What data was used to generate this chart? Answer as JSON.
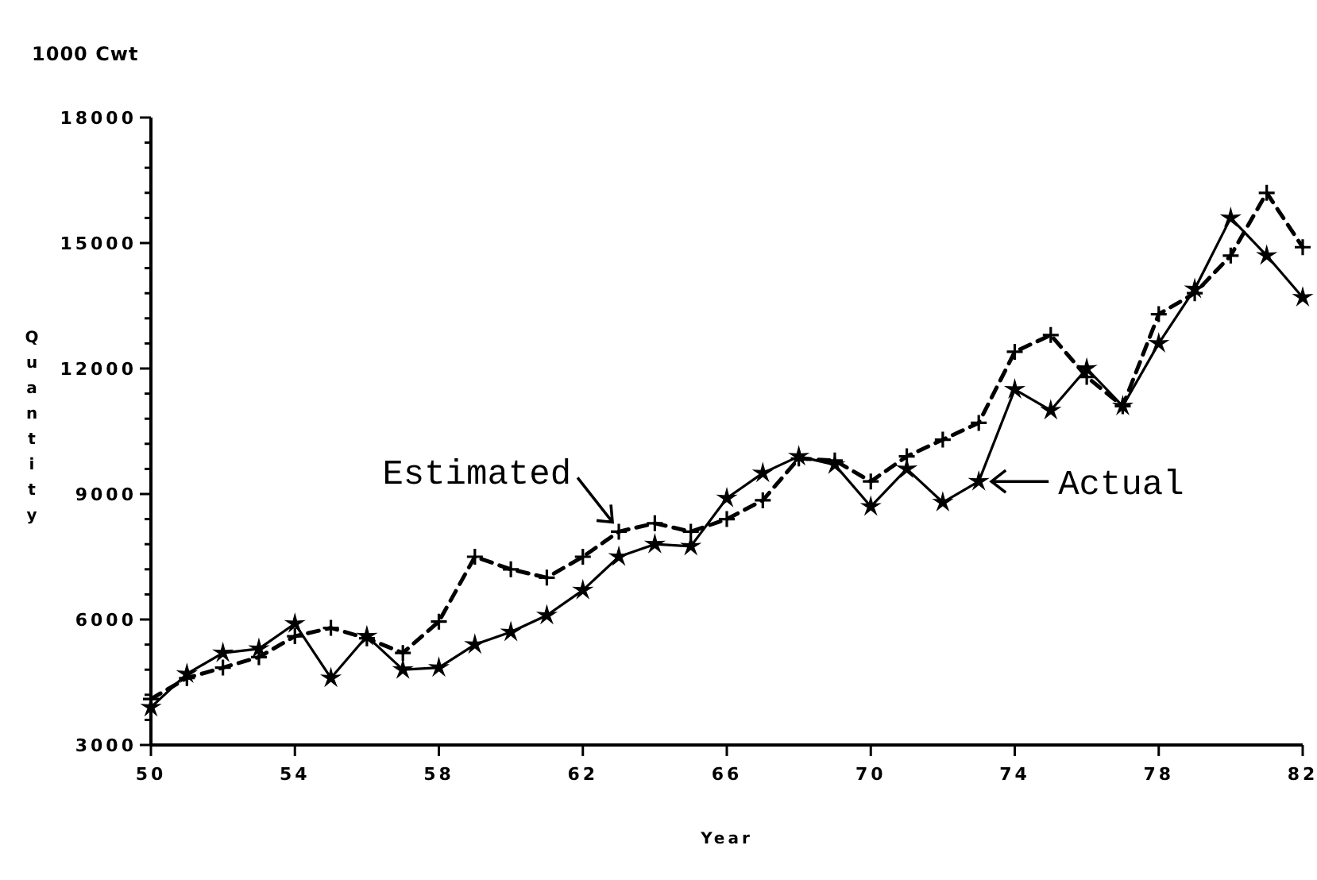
{
  "chart_data": {
    "type": "line",
    "title": "1000 Cwt",
    "xlabel": "Year",
    "ylabel": "Quantity",
    "x": [
      50,
      51,
      52,
      53,
      54,
      55,
      56,
      57,
      58,
      59,
      60,
      61,
      62,
      63,
      64,
      65,
      66,
      67,
      68,
      69,
      70,
      71,
      72,
      73,
      74,
      75,
      76,
      77,
      78,
      79,
      80,
      81,
      82
    ],
    "series": [
      {
        "name": "Actual",
        "color": "#000000",
        "marker": "star",
        "line_style": "solid",
        "values": [
          3900,
          4700,
          5200,
          5300,
          5900,
          4600,
          5600,
          4800,
          4850,
          5400,
          5700,
          6100,
          6700,
          7500,
          7800,
          7750,
          8900,
          9500,
          9900,
          9700,
          8700,
          9600,
          8800,
          9300,
          11500,
          11000,
          12000,
          11100,
          12600,
          13900,
          15600,
          14700,
          13700
        ]
      },
      {
        "name": "Estimated",
        "color": "#000000",
        "marker": "cross",
        "line_style": "dashed",
        "values": [
          4100,
          4600,
          4850,
          5100,
          5600,
          5800,
          5550,
          5200,
          5950,
          7500,
          7200,
          7000,
          7500,
          8100,
          8300,
          8100,
          8400,
          8850,
          9850,
          9800,
          9300,
          9900,
          10300,
          10700,
          12400,
          12800,
          11800,
          11100,
          13300,
          13800,
          14700,
          16200,
          14900
        ]
      }
    ],
    "xlim": [
      50,
      82
    ],
    "xticks": [
      50,
      54,
      58,
      62,
      66,
      70,
      74,
      78,
      82
    ],
    "ylim": [
      3000,
      18000
    ],
    "yticks": [
      3000,
      {
        "value": 3600,
        "label": null
      },
      {
        "value": 4200,
        "label": null
      },
      {
        "value": 4800,
        "label": null
      },
      {
        "value": 5400,
        "label": null
      },
      6000,
      {
        "value": 6600,
        "label": null
      },
      {
        "value": 7200,
        "label": null
      },
      {
        "value": 7800,
        "label": null
      },
      {
        "value": 8400,
        "label": null
      },
      9000,
      {
        "value": 9600,
        "label": null
      },
      {
        "value": 10200,
        "label": null
      },
      {
        "value": 10800,
        "label": null
      },
      {
        "value": 11400,
        "label": null
      },
      12000,
      {
        "value": 12600,
        "label": null
      },
      {
        "value": 13200,
        "label": null
      },
      {
        "value": 13800,
        "label": null
      },
      {
        "value": 14400,
        "label": null
      },
      15000,
      {
        "value": 15600,
        "label": null
      },
      {
        "value": 16200,
        "label": null
      },
      {
        "value": 16800,
        "label": null
      },
      {
        "value": 17400,
        "label": null
      },
      18000
    ],
    "grid": false,
    "legend": "right"
  }
}
